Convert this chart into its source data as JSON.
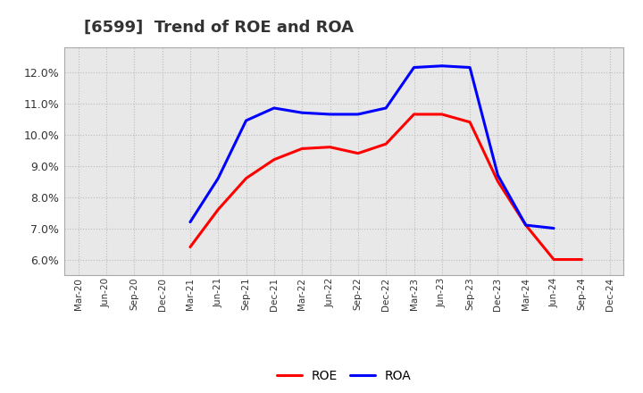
{
  "title": "[6599]  Trend of ROE and ROA",
  "x_labels": [
    "Mar-20",
    "Jun-20",
    "Sep-20",
    "Dec-20",
    "Mar-21",
    "Jun-21",
    "Sep-21",
    "Dec-21",
    "Mar-22",
    "Jun-22",
    "Sep-22",
    "Dec-22",
    "Mar-23",
    "Jun-23",
    "Sep-23",
    "Dec-23",
    "Mar-24",
    "Jun-24",
    "Sep-24",
    "Dec-24"
  ],
  "roe_values": [
    null,
    null,
    null,
    null,
    6.4,
    7.6,
    8.6,
    9.2,
    9.55,
    9.6,
    9.4,
    9.7,
    10.65,
    10.65,
    10.4,
    8.5,
    7.1,
    6.0,
    6.0,
    null
  ],
  "roa_values": [
    null,
    null,
    null,
    null,
    7.2,
    8.6,
    10.45,
    10.85,
    10.7,
    10.65,
    10.65,
    10.85,
    12.15,
    12.2,
    12.15,
    8.7,
    7.1,
    7.0,
    null,
    null
  ],
  "roe_color": "#ff0000",
  "roa_color": "#0000ff",
  "ylim": [
    5.5,
    12.8
  ],
  "yticks": [
    6.0,
    7.0,
    8.0,
    9.0,
    10.0,
    11.0,
    12.0
  ],
  "plot_bg_color": "#e8e8e8",
  "fig_bg_color": "#ffffff",
  "grid_color": "#bbbbbb",
  "title_fontsize": 13,
  "legend_labels": [
    "ROE",
    "ROA"
  ],
  "line_width": 2.2
}
